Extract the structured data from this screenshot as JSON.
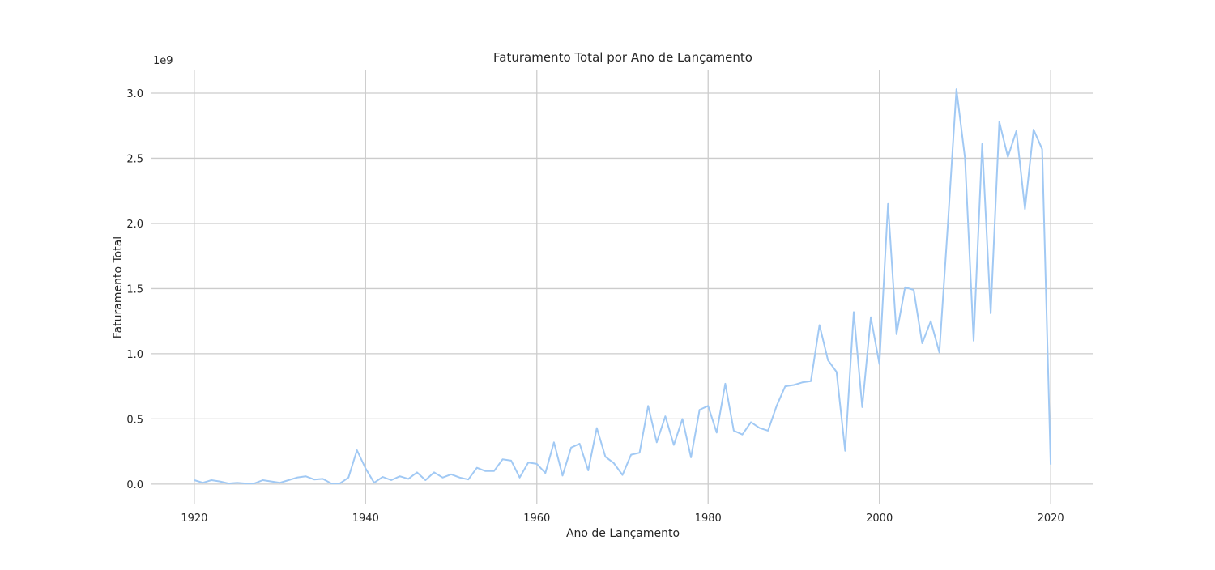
{
  "chart_data": {
    "type": "line",
    "title": "Faturamento Total por Ano de Lançamento",
    "xlabel": "Ano de Lançamento",
    "ylabel": "Faturamento Total",
    "y_offset_label": "1e9",
    "xlim": [
      1915,
      2025
    ],
    "ylim": [
      -0.15,
      3.18
    ],
    "y_scale_note": "values in units of 1e9",
    "grid": true,
    "line_color": "#a1c9f4",
    "grid_color": "#cccccc",
    "x_ticks": [
      1920,
      1940,
      1960,
      1980,
      2000,
      2020
    ],
    "x_tick_labels": [
      "1920",
      "1940",
      "1960",
      "1980",
      "2000",
      "2020"
    ],
    "y_ticks": [
      0.0,
      0.5,
      1.0,
      1.5,
      2.0,
      2.5,
      3.0
    ],
    "y_tick_labels": [
      "0.0",
      "0.5",
      "1.0",
      "1.5",
      "2.0",
      "2.5",
      "3.0"
    ],
    "x": [
      1920,
      1921,
      1922,
      1923,
      1924,
      1925,
      1926,
      1927,
      1928,
      1929,
      1930,
      1931,
      1932,
      1933,
      1934,
      1935,
      1936,
      1937,
      1938,
      1939,
      1940,
      1941,
      1942,
      1943,
      1944,
      1945,
      1946,
      1947,
      1948,
      1949,
      1950,
      1951,
      1952,
      1953,
      1954,
      1955,
      1956,
      1957,
      1958,
      1959,
      1960,
      1961,
      1962,
      1963,
      1964,
      1965,
      1966,
      1967,
      1968,
      1969,
      1970,
      1971,
      1972,
      1973,
      1974,
      1975,
      1976,
      1977,
      1978,
      1979,
      1980,
      1981,
      1982,
      1983,
      1984,
      1985,
      1986,
      1987,
      1988,
      1989,
      1990,
      1991,
      1992,
      1993,
      1994,
      1995,
      1996,
      1997,
      1998,
      1999,
      2000,
      2001,
      2002,
      2003,
      2004,
      2005,
      2006,
      2007,
      2008,
      2009,
      2010,
      2011,
      2012,
      2013,
      2014,
      2015,
      2016,
      2017,
      2018,
      2019,
      2020
    ],
    "values": [
      0.03,
      0.01,
      0.03,
      0.02,
      0.005,
      0.01,
      0.005,
      0.005,
      0.03,
      0.02,
      0.01,
      0.03,
      0.05,
      0.06,
      0.035,
      0.04,
      0.005,
      0.005,
      0.05,
      0.26,
      0.12,
      0.01,
      0.055,
      0.03,
      0.06,
      0.04,
      0.09,
      0.03,
      0.09,
      0.05,
      0.075,
      0.05,
      0.035,
      0.125,
      0.1,
      0.1,
      0.19,
      0.18,
      0.05,
      0.165,
      0.155,
      0.085,
      0.32,
      0.065,
      0.28,
      0.31,
      0.105,
      0.43,
      0.21,
      0.16,
      0.07,
      0.225,
      0.24,
      0.6,
      0.32,
      0.52,
      0.3,
      0.5,
      0.205,
      0.57,
      0.6,
      0.395,
      0.77,
      0.41,
      0.38,
      0.475,
      0.43,
      0.41,
      0.6,
      0.75,
      0.76,
      0.78,
      0.79,
      1.22,
      0.95,
      0.86,
      0.255,
      1.32,
      0.59,
      1.28,
      0.92,
      2.15,
      1.15,
      1.51,
      1.49,
      1.08,
      1.25,
      1.01,
      2.0,
      3.03,
      2.5,
      1.1,
      2.61,
      1.31,
      2.78,
      2.51,
      2.71,
      2.11,
      2.72,
      2.57,
      0.15
    ]
  }
}
